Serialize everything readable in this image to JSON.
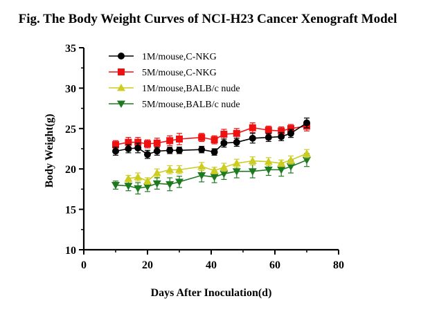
{
  "chart_data": {
    "type": "line",
    "title": "Fig. The Body Weight Curves of NCI-H23 Cancer Xenograft Model",
    "xlabel": "Days After Inoculation(d)",
    "ylabel": "Body Weight(g)",
    "xlim": [
      0,
      80
    ],
    "ylim": [
      10,
      35
    ],
    "xticks": [
      "0",
      "20",
      "40",
      "60",
      "80"
    ],
    "yticks": [
      "10",
      "15",
      "20",
      "25",
      "30",
      "35"
    ],
    "grid": false,
    "legend_position": "top-left",
    "series": [
      {
        "name": "1M/mouse,C-NKG",
        "color": "#000000",
        "marker": "circle",
        "x": [
          10,
          14,
          17,
          20,
          23,
          27,
          30,
          37,
          41,
          44,
          48,
          53,
          58,
          62,
          65,
          70
        ],
        "y": [
          22.2,
          22.5,
          22.6,
          21.8,
          22.2,
          22.3,
          22.3,
          22.4,
          22.1,
          23.2,
          23.3,
          23.8,
          23.9,
          24.0,
          24.4,
          25.7
        ],
        "err": [
          0.5,
          0.5,
          0.6,
          0.5,
          0.5,
          0.4,
          0.4,
          0.4,
          0.4,
          0.5,
          0.5,
          0.6,
          0.5,
          0.5,
          0.5,
          0.6
        ]
      },
      {
        "name": "5M/mouse,C-NKG",
        "color": "#ee1111",
        "marker": "square",
        "x": [
          10,
          14,
          17,
          20,
          23,
          27,
          30,
          37,
          41,
          44,
          48,
          53,
          58,
          62,
          65,
          70
        ],
        "y": [
          23.0,
          23.3,
          23.3,
          23.1,
          23.2,
          23.5,
          23.7,
          23.9,
          23.6,
          24.3,
          24.4,
          25.1,
          24.8,
          24.7,
          25.0,
          25.3
        ],
        "err": [
          0.5,
          0.6,
          0.6,
          0.5,
          0.6,
          0.6,
          0.7,
          0.5,
          0.5,
          0.6,
          0.6,
          0.6,
          0.5,
          0.5,
          0.5,
          0.6
        ]
      },
      {
        "name": "1M/mouse,BALB/c nude",
        "color": "#cccc22",
        "marker": "triangle-up",
        "x": [
          14,
          17,
          20,
          23,
          27,
          30,
          37,
          41,
          44,
          48,
          53,
          58,
          62,
          65,
          70
        ],
        "y": [
          18.8,
          19.0,
          18.5,
          19.5,
          19.9,
          19.9,
          20.3,
          19.8,
          20.2,
          20.7,
          21.0,
          20.9,
          20.7,
          21.1,
          21.9
        ],
        "err": [
          0.4,
          0.5,
          0.4,
          0.5,
          0.5,
          0.5,
          0.5,
          0.4,
          0.5,
          0.5,
          0.5,
          0.5,
          0.4,
          0.5,
          0.5
        ]
      },
      {
        "name": "5M/mouse,BALB/c nude",
        "color": "#1e7a1e",
        "marker": "triangle-down",
        "x": [
          10,
          14,
          17,
          20,
          23,
          27,
          30,
          37,
          41,
          44,
          48,
          53,
          58,
          62,
          65,
          70
        ],
        "y": [
          18.0,
          17.9,
          17.6,
          17.8,
          18.2,
          18.1,
          18.4,
          19.2,
          19.0,
          19.4,
          19.7,
          19.7,
          19.9,
          19.9,
          20.3,
          21.1
        ],
        "err": [
          0.5,
          0.6,
          0.7,
          0.6,
          0.7,
          0.8,
          0.7,
          0.8,
          0.7,
          0.7,
          0.8,
          0.8,
          0.7,
          0.8,
          0.8,
          0.8
        ]
      }
    ]
  }
}
